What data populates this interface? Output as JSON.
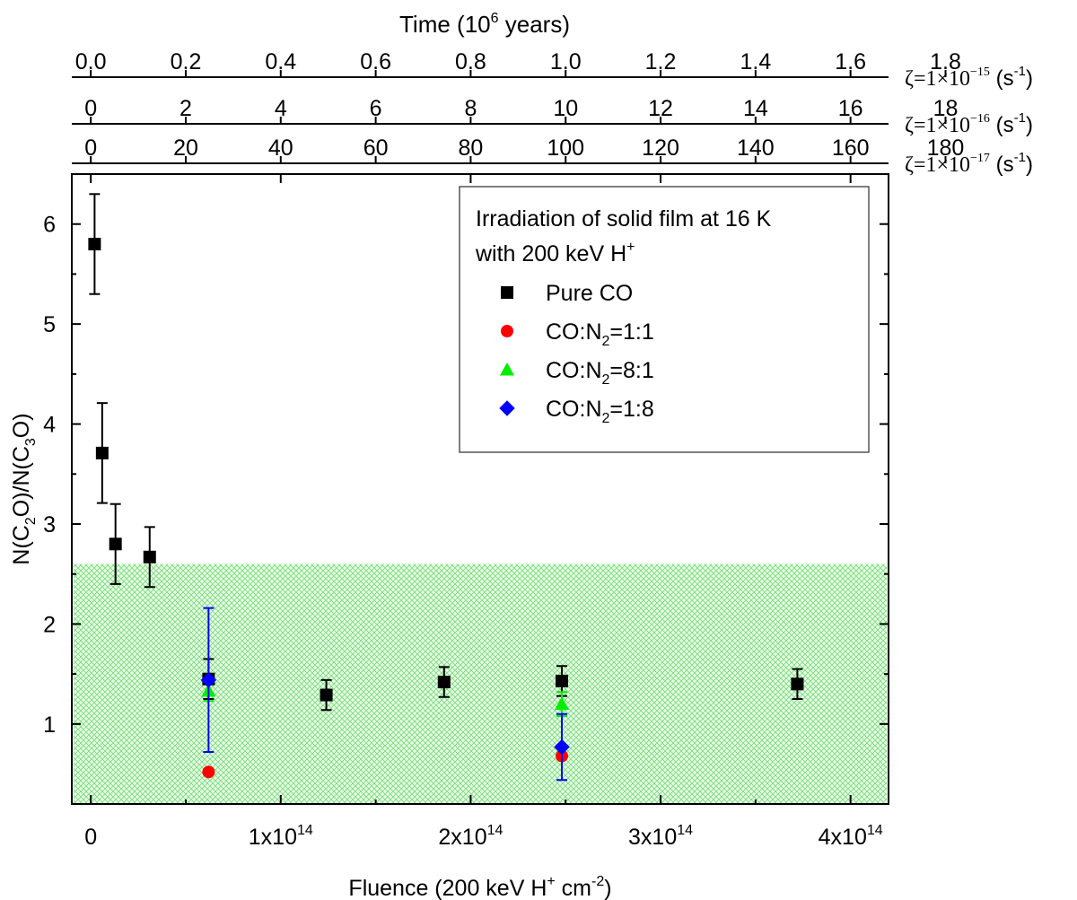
{
  "chart_data": {
    "type": "scatter",
    "xlabel": {
      "text": "Fluence (200 keV H",
      "sup": "+",
      "tail": " cm",
      "sup2": "-2",
      "close": ")"
    },
    "ylabel": {
      "pre": "N(C",
      "sub1": "2",
      "mid": "O)/N(C",
      "sub2": "3",
      "post": "O)"
    },
    "xlim": [
      -10000000000000.0,
      420000000000000.0
    ],
    "ylim": [
      0.2,
      6.5
    ],
    "x_ticks": [
      {
        "value": 0,
        "mant": "0",
        "exp": ""
      },
      {
        "value": 100000000000000.0,
        "mant": "1x10",
        "exp": "14"
      },
      {
        "value": 200000000000000.0,
        "mant": "2x10",
        "exp": "14"
      },
      {
        "value": 300000000000000.0,
        "mant": "3x10",
        "exp": "14"
      },
      {
        "value": 400000000000000.0,
        "mant": "4x10",
        "exp": "14"
      }
    ],
    "y_ticks": [
      1,
      2,
      3,
      4,
      5,
      6
    ],
    "top_title": {
      "text": "Time (10",
      "sup": "6",
      "post": " years)"
    },
    "top_axes": [
      {
        "zeta_label": {
          "pre": "ζ=1×10",
          "exp": "−15",
          "unit": "(s",
          "unit_sup": "-1",
          "unit_close": ")"
        },
        "ticks": [
          "0.0",
          "0.2",
          "0.4",
          "0.6",
          "0.8",
          "1.0",
          "1.2",
          "1.4",
          "1.6",
          "1.8"
        ]
      },
      {
        "zeta_label": {
          "pre": "ζ=1×10",
          "exp": "−16",
          "unit": "(s",
          "unit_sup": "-1",
          "unit_close": ")"
        },
        "ticks": [
          "0",
          "2",
          "4",
          "6",
          "8",
          "10",
          "12",
          "14",
          "16",
          "18"
        ]
      },
      {
        "zeta_label": {
          "pre": "ζ=1×10",
          "exp": "−17",
          "unit": "(s",
          "unit_sup": "-1",
          "unit_close": ")"
        },
        "ticks": [
          "0",
          "20",
          "40",
          "60",
          "80",
          "100",
          "120",
          "140",
          "160",
          "180"
        ]
      }
    ],
    "top_tick_step_fluence": 50000000000000.0,
    "shaded_band": {
      "ymin": 0.2,
      "ymax": 2.6,
      "color": "#7fe07f"
    },
    "legend": {
      "title_line1": "Irradiation of solid film at 16 K",
      "title_line2_pre": "with 200 keV H",
      "title_line2_sup": "+",
      "position": "top-right"
    },
    "series": [
      {
        "name": "Pure CO",
        "name_pre": "Pure CO",
        "name_sub": "",
        "name_post": "",
        "marker": "square",
        "color": "#000000",
        "points": [
          {
            "x": 2000000000000.0,
            "y": 5.8,
            "err": 0.5
          },
          {
            "x": 6000000000000.0,
            "y": 3.71,
            "err": 0.5
          },
          {
            "x": 13000000000000.0,
            "y": 2.8,
            "err": 0.4
          },
          {
            "x": 31000000000000.0,
            "y": 2.67,
            "err": 0.3
          },
          {
            "x": 62000000000000.0,
            "y": 1.45,
            "err": 0.2
          },
          {
            "x": 124000000000000.0,
            "y": 1.29,
            "err": 0.15
          },
          {
            "x": 186000000000000.0,
            "y": 1.42,
            "err": 0.15
          },
          {
            "x": 248000000000000.0,
            "y": 1.43,
            "err": 0.15
          },
          {
            "x": 372000000000000.0,
            "y": 1.4,
            "err": 0.15
          }
        ]
      },
      {
        "name": "CO:N2=1:1",
        "name_pre": "CO:N",
        "name_sub": "2",
        "name_post": "=1:1",
        "marker": "circle",
        "color": "#ff0000",
        "points": [
          {
            "x": 62000000000000.0,
            "y": 0.52,
            "err": 0
          },
          {
            "x": 248000000000000.0,
            "y": 0.68,
            "err": 0
          }
        ]
      },
      {
        "name": "CO:N2=8:1",
        "name_pre": "CO:N",
        "name_sub": "2",
        "name_post": "=8:1",
        "marker": "triangle",
        "color": "#00ee00",
        "points": [
          {
            "x": 62000000000000.0,
            "y": 1.33,
            "err": 0.1
          },
          {
            "x": 248000000000000.0,
            "y": 1.2,
            "err": 0.12
          }
        ]
      },
      {
        "name": "CO:N2=1:8",
        "name_pre": "CO:N",
        "name_sub": "2",
        "name_post": "=1:8",
        "marker": "diamond",
        "color": "#0000ff",
        "points": [
          {
            "x": 62000000000000.0,
            "y": 1.44,
            "err": 0.72
          },
          {
            "x": 248000000000000.0,
            "y": 0.77,
            "err": 0.33
          }
        ]
      }
    ]
  }
}
